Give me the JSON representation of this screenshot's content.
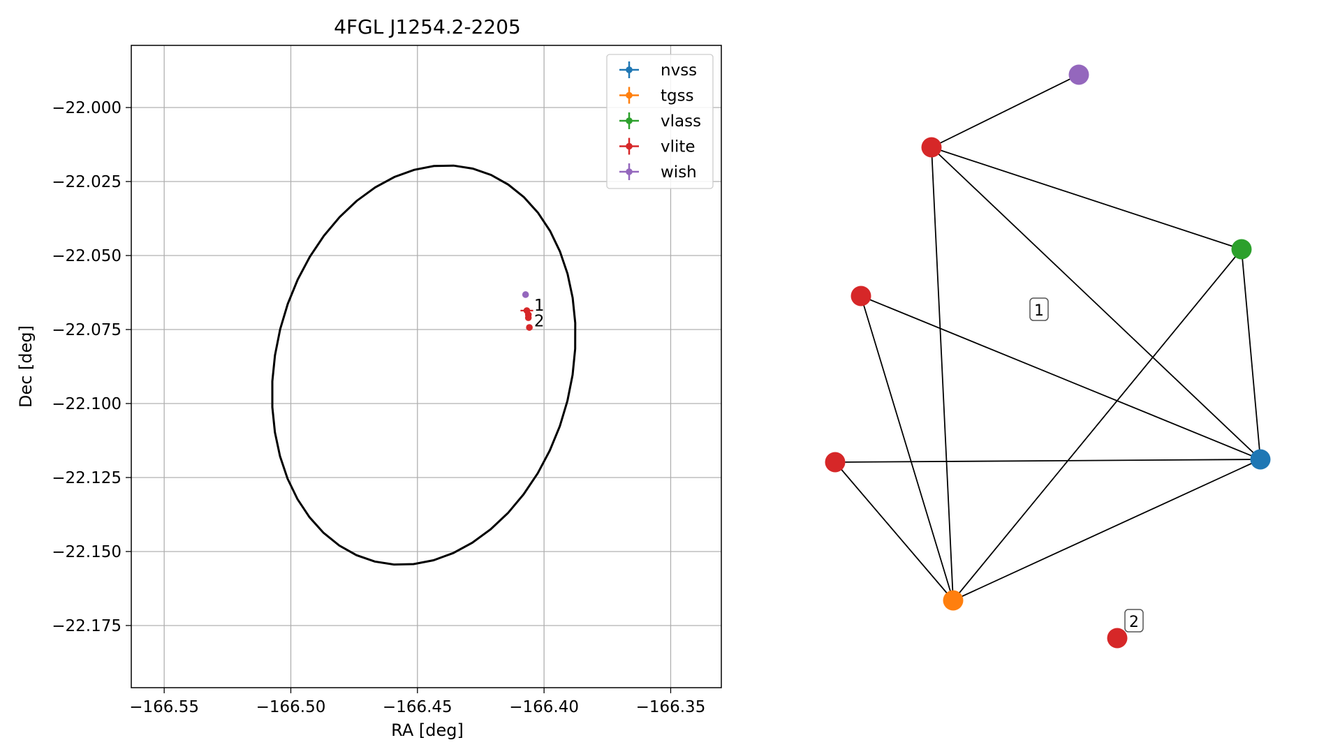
{
  "chart_data": [
    {
      "type": "scatter",
      "title": "4FGL J1254.2-2205",
      "xlabel": "RA [deg]",
      "ylabel": "Dec [deg]",
      "xlim": [
        -166.563,
        -166.33
      ],
      "ylim": [
        -22.196,
        -21.979
      ],
      "xticks": [
        -166.55,
        -166.5,
        -166.45,
        -166.4,
        -166.35
      ],
      "xtick_labels": [
        "−166.55",
        "−166.50",
        "−166.45",
        "−166.40",
        "−166.35"
      ],
      "yticks": [
        -22.0,
        -22.025,
        -22.05,
        -22.075,
        -22.1,
        -22.125,
        -22.15,
        -22.175
      ],
      "ytick_labels": [
        "−22.000",
        "−22.025",
        "−22.050",
        "−22.075",
        "−22.100",
        "−22.125",
        "−22.150",
        "−22.175"
      ],
      "grid": true,
      "legend_position": "top-right",
      "ellipse": {
        "center": [
          -166.4475,
          -22.087
        ],
        "semi_major_deg": 0.07,
        "semi_minor_deg": 0.06,
        "color": "#000000"
      },
      "series": [
        {
          "name": "nvss",
          "color": "#1f77b4",
          "points": []
        },
        {
          "name": "tgss",
          "color": "#ff7f0e",
          "points": []
        },
        {
          "name": "vlass",
          "color": "#2ca02c",
          "points": []
        },
        {
          "name": "vlite",
          "color": "#d62728",
          "points": [
            {
              "x": -166.4068,
              "y": -22.0686,
              "xerr": 0.0025,
              "yerr": 0.001
            },
            {
              "x": -166.4062,
              "y": -22.07,
              "xerr": 0.0005,
              "yerr": 0.0008
            },
            {
              "x": -166.4062,
              "y": -22.071,
              "xerr": 0.0004,
              "yerr": 0.0005
            },
            {
              "x": -166.4058,
              "y": -22.0743,
              "xerr": 0.0003,
              "yerr": 0.0003
            }
          ]
        },
        {
          "name": "wish",
          "color": "#9467bd",
          "points": [
            {
              "x": -166.4073,
              "y": -22.0632,
              "xerr": 0.0004,
              "yerr": 0.0004
            }
          ]
        }
      ],
      "annotations": [
        {
          "text": "1",
          "x": -166.4045,
          "y": -22.0668
        },
        {
          "text": "2",
          "x": -166.4045,
          "y": -22.072
        }
      ]
    },
    {
      "type": "network",
      "nodes": [
        {
          "catalog": "wish",
          "color": "#9467bd"
        },
        {
          "catalog": "vlite",
          "color": "#d62728"
        },
        {
          "catalog": "vlass",
          "color": "#2ca02c"
        },
        {
          "catalog": "vlite",
          "color": "#d62728"
        },
        {
          "catalog": "vlite",
          "color": "#d62728"
        },
        {
          "catalog": "nvss",
          "color": "#1f77b4"
        },
        {
          "catalog": "tgss",
          "color": "#ff7f0e"
        },
        {
          "catalog": "vlite",
          "color": "#d62728"
        }
      ],
      "edges": [
        [
          0,
          1
        ],
        [
          1,
          2
        ],
        [
          1,
          5
        ],
        [
          1,
          6
        ],
        [
          2,
          5
        ],
        [
          2,
          6
        ],
        [
          3,
          5
        ],
        [
          3,
          6
        ],
        [
          4,
          5
        ],
        [
          4,
          6
        ],
        [
          5,
          6
        ]
      ],
      "labels": [
        "1",
        "2"
      ]
    }
  ]
}
